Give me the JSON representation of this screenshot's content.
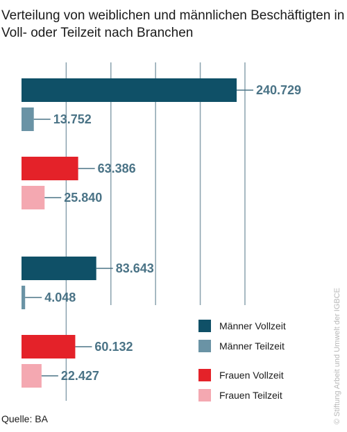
{
  "title": "Verteilung von weiblichen und männlichen Beschäftigten in Voll- oder Teilzeit nach Branchen",
  "source": "Quelle: BA",
  "credit": "© Stiftung Arbeit und Umwelt der IGBCE",
  "colors": {
    "maenner_vollzeit": "#0f5067",
    "maenner_teilzeit": "#6a93a5",
    "frauen_vollzeit": "#e42229",
    "frauen_teilzeit": "#f4a8b1",
    "value_text": "#4a7386",
    "gridline": "#8aa2ae"
  },
  "legend": [
    {
      "label": "Männer Vollzeit",
      "color_key": "maenner_vollzeit"
    },
    {
      "label": "Männer Teilzeit",
      "color_key": "maenner_teilzeit"
    },
    {
      "label": "Frauen Vollzeit",
      "color_key": "frauen_vollzeit"
    },
    {
      "label": "Frauen Teilzeit",
      "color_key": "frauen_teilzeit"
    }
  ],
  "chart_data": {
    "type": "bar",
    "orientation": "horizontal",
    "grid": true,
    "gridline_step": 50000,
    "xlim": [
      0,
      250000
    ],
    "groups": [
      {
        "name": "",
        "bars": [
          {
            "series": "Männer Vollzeit",
            "value": 240729,
            "label": "240.729"
          },
          {
            "series": "Männer Teilzeit",
            "value": 13752,
            "label": "13.752"
          },
          {
            "series": "Frauen Vollzeit",
            "value": 63386,
            "label": "63.386"
          },
          {
            "series": "Frauen Teilzeit",
            "value": 25840,
            "label": "25.840"
          }
        ]
      },
      {
        "name": "",
        "bars": [
          {
            "series": "Männer Vollzeit",
            "value": 83643,
            "label": "83.643"
          },
          {
            "series": "Männer Teilzeit",
            "value": 4048,
            "label": "4.048"
          },
          {
            "series": "Frauen Vollzeit",
            "value": 60132,
            "label": "60.132"
          },
          {
            "series": "Frauen Teilzeit",
            "value": 22427,
            "label": "22.427"
          }
        ]
      }
    ]
  }
}
